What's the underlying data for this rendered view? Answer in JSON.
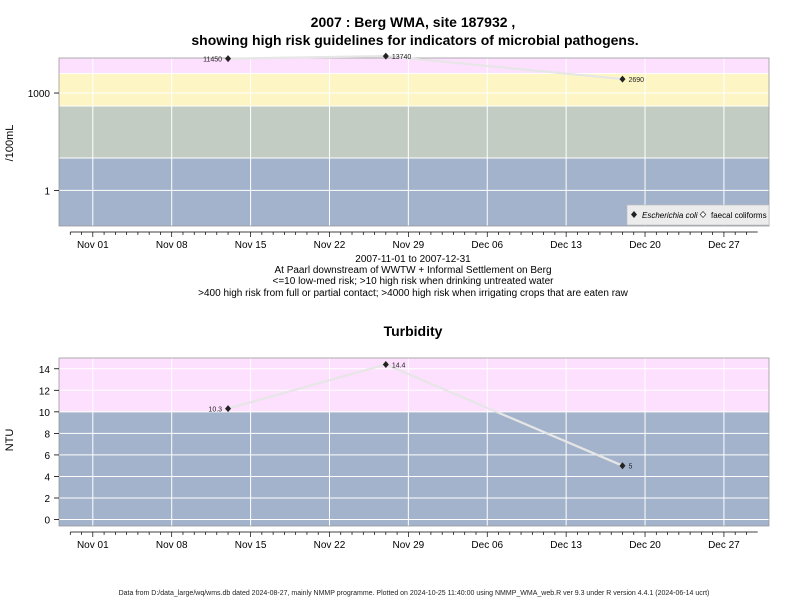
{
  "chart_data": [
    {
      "type": "scatter",
      "title_line1": "2007 : Berg WMA, site 187932 ,",
      "title_line2": "showing high risk guidelines for indicators of microbial pathogens.",
      "ylabel": "/100mL",
      "y_scale": "log",
      "ylim": [
        0.08,
        12000
      ],
      "yticks": [
        {
          "value": 1,
          "label": "1"
        },
        {
          "value": 1000,
          "label": "1000"
        }
      ],
      "bands": [
        {
          "from": 0.08,
          "to": 10,
          "color": "#a3b3cc"
        },
        {
          "from": 10,
          "to": 400,
          "color": "#c3ccc3"
        },
        {
          "from": 400,
          "to": 4000,
          "color": "#fdf6c4"
        },
        {
          "from": 4000,
          "to": 12000,
          "color": "#fde0fd"
        }
      ],
      "series": [
        {
          "name": "Escherichia coli",
          "marker": "filled-diamond",
          "points": [
            {
              "x": "2007-11-13",
              "y": 11450,
              "label": "11450",
              "label_side": "left"
            },
            {
              "x": "2007-11-27",
              "y": 13740,
              "label": "13740",
              "label_side": "right"
            },
            {
              "x": "2007-12-18",
              "y": 2690,
              "label": "2690",
              "label_side": "right"
            }
          ]
        }
      ],
      "legend": {
        "position": "bottom-right",
        "items": [
          {
            "label": "Escherichia coli",
            "marker": "filled-diamond",
            "italic": true
          },
          {
            "label": "faecal coliforms",
            "marker": "open-diamond",
            "italic": false
          }
        ]
      },
      "xticks": [
        "Nov 01",
        "Nov 08",
        "Nov 15",
        "Nov 22",
        "Nov 29",
        "Dec 06",
        "Dec 13",
        "Dec 20",
        "Dec 27"
      ],
      "captions": [
        "2007-11-01 to 2007-12-31",
        "At Paarl downstream of WWTW + Informal Settlement on Berg",
        "<=10 low-med risk; >10 high risk when drinking untreated water",
        ">400 high risk from full or partial contact; >4000 high risk when irrigating crops that are eaten raw"
      ]
    },
    {
      "type": "scatter",
      "title": "Turbidity",
      "ylabel": "NTU",
      "y_scale": "linear",
      "ylim": [
        -0.6,
        15
      ],
      "yticks": [
        0,
        2,
        4,
        6,
        8,
        10,
        12,
        14
      ],
      "bands": [
        {
          "from": -0.6,
          "to": 10,
          "color": "#a3b3cc"
        },
        {
          "from": 10,
          "to": 15,
          "color": "#fde0fd"
        }
      ],
      "series": [
        {
          "points": [
            {
              "x": "2007-11-13",
              "y": 10.3,
              "label": "10.3",
              "label_side": "left"
            },
            {
              "x": "2007-11-27",
              "y": 14.4,
              "label": "14.4",
              "label_side": "right"
            },
            {
              "x": "2007-12-18",
              "y": 5,
              "label": "5",
              "label_side": "right"
            }
          ]
        }
      ],
      "xticks": [
        "Nov 01",
        "Nov 08",
        "Nov 15",
        "Nov 22",
        "Nov 29",
        "Dec 06",
        "Dec 13",
        "Dec 20",
        "Dec 27"
      ]
    }
  ],
  "x_range": [
    "2007-10-29",
    "2007-12-31"
  ],
  "footer": "Data from D:/data_large/wq/wms.db dated 2024-08-27, mainly NMMP programme. Plotted on 2024-10-25 11:40:00 using NMMP_WMA_web.R ver 9.3 under R version 4.4.1 (2024-06-14 ucrt)"
}
